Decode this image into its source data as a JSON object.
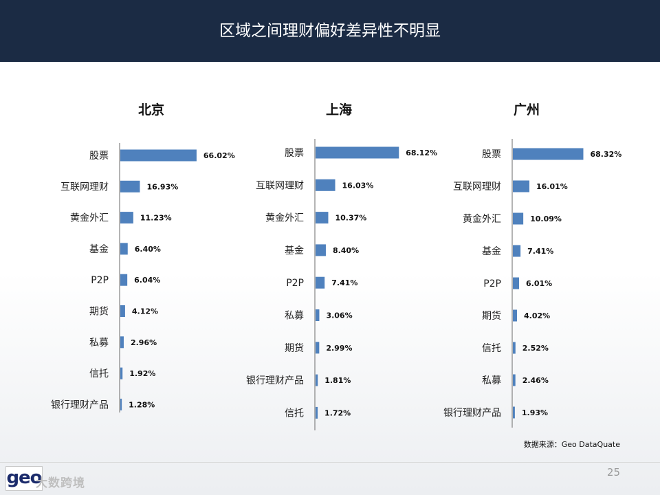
{
  "header": {
    "title": "区域之间理财偏好差异性不明显"
  },
  "colors": {
    "header_bg": "#1b2b44",
    "bar": "#4f81bd"
  },
  "chart_data": [
    {
      "type": "bar",
      "orientation": "horizontal",
      "title": "北京",
      "categories": [
        "股票",
        "互联网理财",
        "黄金外汇",
        "基金",
        "P2P",
        "期货",
        "私募",
        "信托",
        "银行理财产品"
      ],
      "values": [
        66.02,
        16.93,
        11.23,
        6.4,
        6.04,
        4.12,
        2.96,
        1.92,
        1.28
      ],
      "value_labels": [
        "66.02%",
        "16.93%",
        "11.23%",
        "6.40%",
        "6.04%",
        "4.12%",
        "2.96%",
        "1.92%",
        "1.28%"
      ],
      "unit": "%"
    },
    {
      "type": "bar",
      "orientation": "horizontal",
      "title": "上海",
      "categories": [
        "股票",
        "互联网理财",
        "黄金外汇",
        "基金",
        "P2P",
        "私募",
        "期货",
        "银行理财产品",
        "信托"
      ],
      "values": [
        68.12,
        16.03,
        10.37,
        8.4,
        7.41,
        3.06,
        2.99,
        1.81,
        1.72
      ],
      "value_labels": [
        "68.12%",
        "16.03%",
        "10.37%",
        "8.40%",
        "7.41%",
        "3.06%",
        "2.99%",
        "1.81%",
        "1.72%"
      ],
      "unit": "%"
    },
    {
      "type": "bar",
      "orientation": "horizontal",
      "title": "广州",
      "categories": [
        "股票",
        "互联网理财",
        "黄金外汇",
        "基金",
        "P2P",
        "期货",
        "信托",
        "私募",
        "银行理财产品"
      ],
      "values": [
        68.32,
        16.01,
        10.09,
        7.41,
        6.01,
        4.02,
        2.52,
        2.46,
        1.93
      ],
      "value_labels": [
        "68.32%",
        "16.01%",
        "10.09%",
        "7.41%",
        "6.01%",
        "4.02%",
        "2.52%",
        "2.46%",
        "1.93%"
      ],
      "unit": "%"
    }
  ],
  "footer": {
    "source": "数据来源：Geo DataQuate",
    "page_number": "25",
    "logo_mark": "geo",
    "logo_text": "大数跨境"
  }
}
